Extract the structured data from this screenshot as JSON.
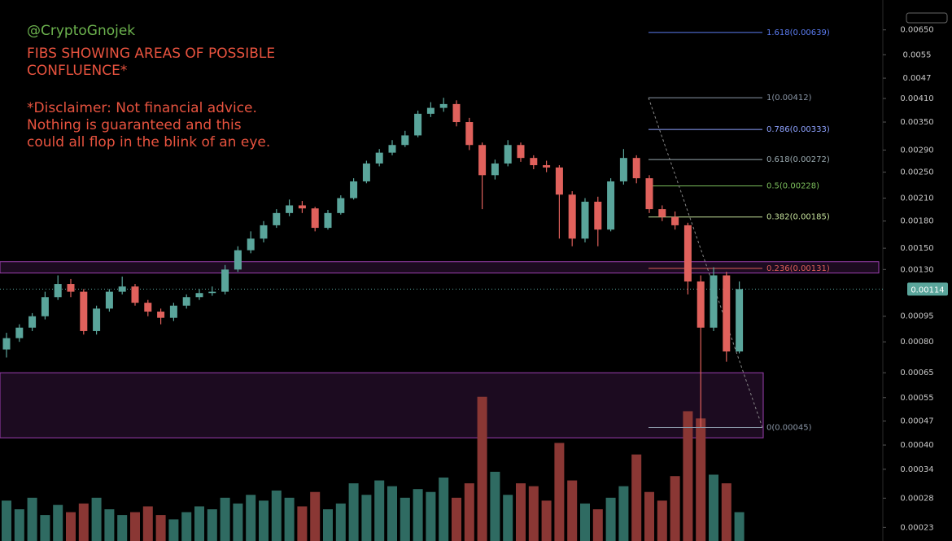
{
  "chart_data": {
    "type": "candlestick",
    "annotations": [
      "@CryptoGnojek",
      "FIBS SHOWING AREAS OF POSSIBLE",
      "CONFLUENCE*",
      "*Disclaimer: Not financial advice.",
      "Nothing is guaranteed and this",
      "could all flop in the blink of an eye."
    ],
    "annotation_colors": [
      "#6cb24e",
      "#e8533f",
      "#e8533f",
      "#e8533f",
      "#e8533f",
      "#e8533f"
    ],
    "log_scale": true,
    "grid": false,
    "ylim": [
      0.00021,
      0.0072
    ],
    "yticks": [
      {
        "value": 0.0065,
        "label": "0.00650"
      },
      0.0055,
      0.0047,
      {
        "value": 0.0041,
        "label": "0.00410"
      },
      {
        "value": 0.0035,
        "label": "0.00350"
      },
      {
        "value": 0.0029,
        "label": "0.00290"
      },
      {
        "value": 0.0025,
        "label": "0.00250"
      },
      {
        "value": 0.0021,
        "label": "0.00210"
      },
      {
        "value": 0.0018,
        "label": "0.00180"
      },
      {
        "value": 0.0015,
        "label": "0.00150"
      },
      {
        "value": 0.0013,
        "label": "0.00130"
      },
      0.00095,
      {
        "value": 0.0008,
        "label": "0.00080"
      },
      0.00065,
      0.00055,
      0.00047,
      {
        "value": 0.0004,
        "label": "0.00040"
      },
      0.00034,
      0.00028,
      0.00023
    ],
    "up_color": "#5aa59b",
    "down_color": "#e0615c",
    "volume_up_color": "#2f6b62",
    "volume_down_color": "#8a3734",
    "current_price": 0.00114,
    "open": [
      0.00076,
      0.00082,
      0.00088,
      0.00095,
      0.00108,
      0.00118,
      0.00112,
      0.00086,
      0.001,
      0.00112,
      0.00116,
      0.00104,
      0.00098,
      0.00094,
      0.00102,
      0.00108,
      0.00111,
      0.00112,
      0.0013,
      0.00148,
      0.0016,
      0.00175,
      0.0019,
      0.002,
      0.00196,
      0.00172,
      0.0019,
      0.0021,
      0.00235,
      0.00265,
      0.00285,
      0.003,
      0.0032,
      0.0037,
      0.00385,
      0.00395,
      0.0035,
      0.003,
      0.00245,
      0.00265,
      0.003,
      0.00275,
      0.00262,
      0.00258,
      0.00215,
      0.0016,
      0.00205,
      0.0017,
      0.00235,
      0.00275,
      0.0024,
      0.00195,
      0.00185,
      0.00175,
      0.0012,
      0.00088,
      0.00125,
      0.00075
    ],
    "high": [
      0.00085,
      0.0009,
      0.00097,
      0.00112,
      0.00125,
      0.00122,
      0.00114,
      0.00102,
      0.00114,
      0.00124,
      0.00118,
      0.00106,
      0.001,
      0.00104,
      0.0011,
      0.00114,
      0.00116,
      0.00134,
      0.00152,
      0.00168,
      0.0018,
      0.00195,
      0.00208,
      0.00206,
      0.00198,
      0.00194,
      0.00214,
      0.0024,
      0.0027,
      0.00292,
      0.0031,
      0.0033,
      0.00378,
      0.004,
      0.00412,
      0.00405,
      0.0036,
      0.00305,
      0.00272,
      0.0031,
      0.00305,
      0.0028,
      0.0027,
      0.00262,
      0.0022,
      0.0021,
      0.00212,
      0.0024,
      0.00292,
      0.0028,
      0.00245,
      0.002,
      0.00192,
      0.00178,
      0.00125,
      0.00132,
      0.00128,
      0.0012
    ],
    "low": [
      0.00072,
      0.0008,
      0.00086,
      0.00093,
      0.00106,
      0.00108,
      0.00084,
      0.00084,
      0.00098,
      0.0011,
      0.00102,
      0.00095,
      0.0009,
      0.00092,
      0.001,
      0.00106,
      0.00109,
      0.0011,
      0.00128,
      0.00145,
      0.00156,
      0.00172,
      0.00186,
      0.0019,
      0.00168,
      0.0017,
      0.00188,
      0.00208,
      0.00232,
      0.0026,
      0.0028,
      0.00296,
      0.00316,
      0.00362,
      0.00375,
      0.0034,
      0.0029,
      0.00195,
      0.00238,
      0.0026,
      0.00268,
      0.00255,
      0.0025,
      0.0016,
      0.00152,
      0.00156,
      0.00152,
      0.00168,
      0.0023,
      0.00232,
      0.0019,
      0.0018,
      0.0017,
      0.0011,
      0.00045,
      0.00086,
      0.0007,
      0.00074
    ],
    "close": [
      0.00082,
      0.00088,
      0.00095,
      0.00108,
      0.00118,
      0.00112,
      0.00086,
      0.001,
      0.00112,
      0.00116,
      0.00104,
      0.00098,
      0.00094,
      0.00102,
      0.00108,
      0.00111,
      0.00112,
      0.0013,
      0.00148,
      0.0016,
      0.00175,
      0.0019,
      0.002,
      0.00196,
      0.00172,
      0.0019,
      0.0021,
      0.00235,
      0.00265,
      0.00285,
      0.003,
      0.0032,
      0.0037,
      0.00385,
      0.00395,
      0.0035,
      0.003,
      0.00245,
      0.00265,
      0.003,
      0.00275,
      0.00262,
      0.00258,
      0.00215,
      0.0016,
      0.00205,
      0.0017,
      0.00235,
      0.00275,
      0.0024,
      0.00195,
      0.00185,
      0.00175,
      0.0012,
      0.00088,
      0.00125,
      0.00075,
      0.00114
    ],
    "volume": [
      28,
      22,
      30,
      18,
      25,
      20,
      26,
      30,
      22,
      18,
      20,
      24,
      18,
      15,
      20,
      24,
      22,
      30,
      26,
      32,
      28,
      35,
      30,
      24,
      34,
      22,
      26,
      40,
      32,
      42,
      38,
      30,
      36,
      34,
      44,
      30,
      40,
      100,
      48,
      32,
      40,
      38,
      28,
      68,
      42,
      26,
      22,
      30,
      38,
      60,
      34,
      28,
      45,
      90,
      85,
      46,
      40,
      20
    ],
    "y2lim": [
      0,
      365
    ],
    "zones": [
      {
        "low": 0.00127,
        "high": 0.00137,
        "color": "#9c3fb0"
      },
      {
        "low": 0.00042,
        "high": 0.00065,
        "color": "#9c3fb0"
      }
    ],
    "fib_levels": [
      {
        "value": 0.00639,
        "label": "1.618(0.00639)",
        "color": "#5b7cf2"
      },
      {
        "value": 0.00412,
        "label": "1(0.00412)",
        "color": "#8a96a6"
      },
      {
        "value": 0.00333,
        "label": "0.786(0.00333)",
        "color": "#8ea2ff"
      },
      {
        "value": 0.00272,
        "label": "0.618(0.00272)",
        "color": "#9aaab0"
      },
      {
        "value": 0.00228,
        "label": "0.5(0.00228)",
        "color": "#7cbf5c"
      },
      {
        "value": 0.00185,
        "label": "0.382(0.00185)",
        "color": "#c4e09a"
      },
      {
        "value": 0.00131,
        "label": "0.236(0.00131)",
        "color": "#e0605a"
      },
      {
        "value": 0.00045,
        "label": "0(0.00045)",
        "color": "#8a96a6"
      }
    ]
  }
}
